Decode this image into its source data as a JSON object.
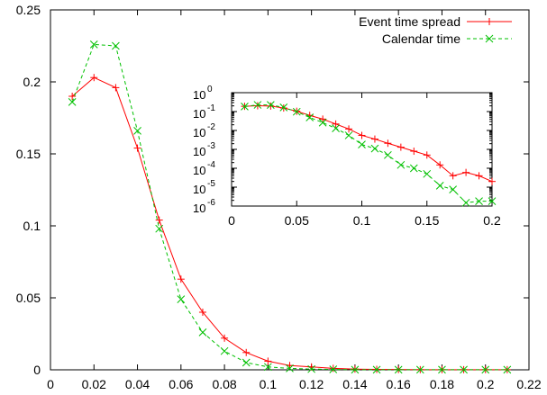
{
  "chart_data": [
    {
      "type": "line",
      "title": "",
      "xlabel": "",
      "ylabel": "",
      "xlim": [
        0,
        0.22
      ],
      "ylim": [
        0,
        0.25
      ],
      "x_ticks": [
        "0",
        "0.02",
        "0.04",
        "0.06",
        "0.08",
        "0.1",
        "0.12",
        "0.14",
        "0.16",
        "0.18",
        "0.2",
        "0.22"
      ],
      "y_ticks": [
        "0",
        "0.05",
        "0.1",
        "0.15",
        "0.2",
        "0.25"
      ],
      "grid": false,
      "legend_position": "top-right",
      "series": [
        {
          "name": "Event time spread",
          "color": "#ff0000",
          "line_style": "solid",
          "marker": "plus",
          "x": [
            0.01,
            0.02,
            0.03,
            0.04,
            0.05,
            0.06,
            0.07,
            0.08,
            0.09,
            0.1,
            0.11,
            0.12,
            0.13,
            0.14,
            0.15,
            0.16,
            0.17,
            0.18,
            0.19,
            0.2,
            0.21
          ],
          "y": [
            0.19,
            0.203,
            0.196,
            0.154,
            0.104,
            0.063,
            0.04,
            0.022,
            0.012,
            0.006,
            0.003,
            0.002,
            0.001,
            0.0005,
            0.0003,
            0.0002,
            0.0001,
            0.0001,
            0.0001,
            0.0001,
            0.0001
          ]
        },
        {
          "name": "Calendar time",
          "color": "#00c000",
          "line_style": "dashed",
          "marker": "cross",
          "x": [
            0.01,
            0.02,
            0.03,
            0.04,
            0.05,
            0.06,
            0.07,
            0.08,
            0.09,
            0.1,
            0.11,
            0.12,
            0.13,
            0.14,
            0.15,
            0.16,
            0.17,
            0.18,
            0.19,
            0.2,
            0.21
          ],
          "y": [
            0.186,
            0.226,
            0.225,
            0.166,
            0.098,
            0.049,
            0.026,
            0.013,
            0.005,
            0.002,
            0.001,
            0.0005,
            0.0003,
            0.0001,
            0.0001,
            0.0001,
            0.0001,
            0.0001,
            0.0001,
            0.0001,
            0.0001
          ]
        }
      ]
    },
    {
      "type": "line",
      "title": "",
      "xlabel": "",
      "ylabel": "",
      "xlim": [
        0,
        0.2
      ],
      "ylim": [
        1e-06,
        1
      ],
      "y_scale": "log",
      "x_ticks": [
        "0",
        "0.05",
        "0.1",
        "0.15",
        "0.2"
      ],
      "y_ticks": [
        {
          "base": "10",
          "exp": "0"
        },
        {
          "base": "10",
          "exp": "-1"
        },
        {
          "base": "10",
          "exp": "-2"
        },
        {
          "base": "10",
          "exp": "-3"
        },
        {
          "base": "10",
          "exp": "-4"
        },
        {
          "base": "10",
          "exp": "-5"
        },
        {
          "base": "10",
          "exp": "-6"
        }
      ],
      "grid": false,
      "series": [
        {
          "name": "Event time spread",
          "color": "#ff0000",
          "line_style": "solid",
          "marker": "plus",
          "x": [
            0.01,
            0.02,
            0.03,
            0.04,
            0.05,
            0.06,
            0.07,
            0.08,
            0.09,
            0.1,
            0.11,
            0.12,
            0.13,
            0.14,
            0.15,
            0.16,
            0.17,
            0.18,
            0.19,
            0.2
          ],
          "y": [
            0.19,
            0.203,
            0.196,
            0.154,
            0.104,
            0.063,
            0.04,
            0.022,
            0.012,
            0.0055,
            0.0035,
            0.0021,
            0.0013,
            0.0008,
            0.0005,
            0.00015,
            4e-05,
            6e-05,
            4e-05,
            2e-05
          ]
        },
        {
          "name": "Calendar time",
          "color": "#00c000",
          "line_style": "dashed",
          "marker": "cross",
          "x": [
            0.01,
            0.02,
            0.03,
            0.04,
            0.05,
            0.06,
            0.07,
            0.08,
            0.09,
            0.1,
            0.11,
            0.12,
            0.13,
            0.14,
            0.15,
            0.16,
            0.17,
            0.18,
            0.19,
            0.2
          ],
          "y": [
            0.186,
            0.226,
            0.225,
            0.166,
            0.098,
            0.049,
            0.026,
            0.013,
            0.0055,
            0.0018,
            0.0011,
            0.0005,
            0.00015,
            0.0001,
            5e-05,
            1.2e-05,
            7.5e-06,
            1.5e-06,
            1.8e-06,
            1.8e-06
          ]
        }
      ]
    }
  ]
}
